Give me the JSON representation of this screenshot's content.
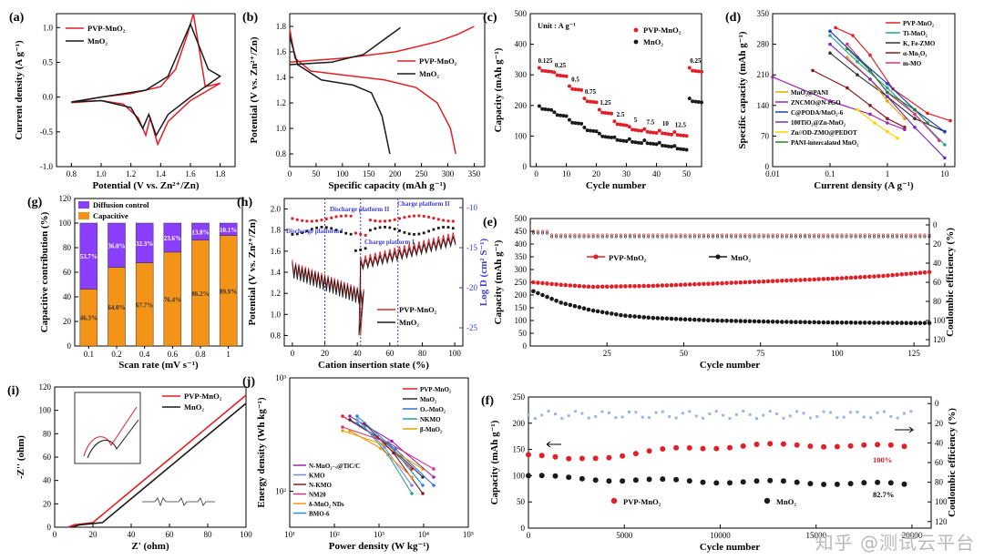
{
  "colors": {
    "red": "#e21f26",
    "black": "#1a1a1a",
    "purple": "#8a3ffc",
    "orange": "#f39419",
    "blue": "#3b3bd6",
    "grey": "#8c8c8c"
  },
  "watermark": "知乎 @测试云平台",
  "chart_data": [
    {
      "id": "a",
      "label": "(a)",
      "type": "line",
      "xlabel": "Potential (V vs. Zn²⁺/Zn)",
      "ylabel": "Current density (A g⁻¹)",
      "xlim": [
        0.7,
        1.9
      ],
      "ylim": [
        -1.0,
        1.2
      ],
      "xticks": [
        "0.8",
        "1.0",
        "1.2",
        "1.4",
        "1.6",
        "1.8"
      ],
      "yticks": [
        "-1.0",
        "-0.5",
        "0.0",
        "0.5",
        "1.0"
      ],
      "series": [
        {
          "name": "PVP-MnO₂",
          "color": "red"
        },
        {
          "name": "MnO₂",
          "color": "black"
        }
      ]
    },
    {
      "id": "b",
      "label": "(b)",
      "type": "line",
      "xlabel": "Specific capacity (mAh g⁻¹)",
      "ylabel": "Potential (V vs. Zn²⁺/Zn)",
      "xlim": [
        0,
        370
      ],
      "ylim": [
        0.7,
        1.9
      ],
      "xticks": [
        "0",
        "50",
        "100",
        "150",
        "200",
        "250",
        "300",
        "350"
      ],
      "yticks": [
        "0.8",
        "1.0",
        "1.2",
        "1.4",
        "1.6",
        "1.8"
      ],
      "series": [
        {
          "name": "PVP-MnO₂",
          "color": "red"
        },
        {
          "name": "MnO₂",
          "color": "black"
        }
      ]
    },
    {
      "id": "c",
      "label": "(c)",
      "type": "scatter",
      "unit": "Unit : A g⁻¹",
      "xlabel": "Cycle number",
      "ylabel": "Capacity (mAh g⁻¹)",
      "xlim": [
        -2,
        55
      ],
      "ylim": [
        0,
        500
      ],
      "xticks": [
        "0",
        "10",
        "20",
        "30",
        "40",
        "50"
      ],
      "yticks": [
        "0",
        "100",
        "200",
        "300",
        "400",
        "500"
      ],
      "rate_labels": [
        "0.125",
        "0.25",
        "0.5",
        "0.75",
        "1.25",
        "2.5",
        "5",
        "7.5",
        "10",
        "12.5",
        "0.25"
      ],
      "series": [
        {
          "name": "PVP-MnO₂",
          "color": "red",
          "steps": [
            315,
            300,
            255,
            215,
            178,
            140,
            122,
            115,
            110,
            105,
            315
          ]
        },
        {
          "name": "MnO₂",
          "color": "black",
          "steps": [
            190,
            170,
            145,
            120,
            100,
            88,
            82,
            78,
            70,
            60,
            215
          ]
        }
      ]
    },
    {
      "id": "d",
      "label": "(d)",
      "type": "line",
      "xlabel": "Current density (A g⁻¹)",
      "ylabel": "Specific capacity (mAh g⁻¹)",
      "xscale": "log",
      "xlim": [
        0.01,
        15
      ],
      "ylim": [
        0,
        350
      ],
      "xticks": [
        "0.01",
        "0.1",
        "1",
        "10"
      ],
      "yticks": [
        "0",
        "70",
        "140",
        "210",
        "280",
        "350"
      ],
      "series": [
        {
          "name": "PVP-MnO₂",
          "color": "#e21f26",
          "x": [
            0.125,
            0.25,
            0.5,
            1.25,
            5,
            12.5
          ],
          "y": [
            318,
            300,
            255,
            178,
            122,
            105
          ]
        },
        {
          "name": "Ti-MnO₂",
          "color": "#2aa198",
          "x": [
            0.1,
            0.3,
            1,
            3,
            10
          ],
          "y": [
            300,
            240,
            180,
            120,
            50
          ]
        },
        {
          "name": "K, Fe-ZMO",
          "color": "#333333",
          "x": [
            0.1,
            0.3,
            1,
            3,
            10
          ],
          "y": [
            260,
            210,
            160,
            110,
            80
          ]
        },
        {
          "name": "α-Mn₂O₃",
          "color": "#8b1a1a",
          "x": [
            0.05,
            0.2,
            0.5,
            1,
            2
          ],
          "y": [
            220,
            180,
            140,
            110,
            90
          ]
        },
        {
          "name": "m-MO",
          "color": "#d63384",
          "x": [
            0.2,
            0.5,
            1,
            3,
            8
          ],
          "y": [
            280,
            220,
            170,
            120,
            60
          ]
        },
        {
          "name": "MnO₂@PANI",
          "color": "#e0a800",
          "x": [
            0.2,
            0.5,
            1,
            2
          ],
          "y": [
            250,
            200,
            150,
            110
          ]
        },
        {
          "name": "ZNCMO@N-rGO",
          "color": "#9c27b0",
          "x": [
            0.01,
            0.1,
            0.5,
            1,
            2
          ],
          "y": [
            205,
            150,
            120,
            100,
            85
          ]
        },
        {
          "name": "C@PODA/MnO₂-6",
          "color": "#1f3fbf",
          "x": [
            0.1,
            0.3,
            1,
            3,
            10
          ],
          "y": [
            310,
            250,
            190,
            130,
            80
          ]
        },
        {
          "name": "100TiO₂@Zn-MnO₂",
          "color": "#7b2cbf",
          "x": [
            0.1,
            0.5,
            1,
            3,
            10
          ],
          "y": [
            280,
            200,
            160,
            90,
            20
          ]
        },
        {
          "name": "Zn//OD-ZMO@PEDOT",
          "color": "#ffd400",
          "x": [
            0.3,
            0.6,
            1,
            1.5
          ],
          "y": [
            130,
            100,
            80,
            65
          ]
        },
        {
          "name": "PANI-intercalated MnO₂",
          "color": "#2e7d32",
          "x": [
            0.2,
            0.5,
            1,
            3,
            5
          ],
          "y": [
            270,
            220,
            170,
            130,
            100
          ]
        }
      ]
    },
    {
      "id": "g",
      "label": "(g)",
      "type": "bar",
      "xlabel": "Scan rate (mV s⁻¹)",
      "ylabel": "Capacitive contribution (%)",
      "ylim": [
        0,
        120
      ],
      "yticks": [
        "0",
        "20",
        "40",
        "60",
        "80",
        "100",
        "120"
      ],
      "categories": [
        "0.1",
        "0.2",
        "0.4",
        "0.6",
        "0.8",
        "1"
      ],
      "series": [
        {
          "name": "Capacitive",
          "color": "orange",
          "values": [
            46.3,
            64.0,
            67.7,
            76.4,
            86.2,
            89.9
          ],
          "labels": [
            "46.3%",
            "64.0%",
            "67.7%",
            "76.4%",
            "86.2%",
            "89.9%"
          ]
        },
        {
          "name": "Diffusion control",
          "color": "purple",
          "values": [
            53.7,
            36.0,
            32.3,
            23.6,
            13.8,
            10.1
          ],
          "labels": [
            "53.7%",
            "36.0%",
            "32.3%",
            "23.6%",
            "13.8%",
            "10.1%"
          ]
        }
      ]
    },
    {
      "id": "h",
      "label": "(h)",
      "type": "line",
      "xlabel": "Cation insertion state (%)",
      "ylabel": "Potential (V vs. Zn²⁺/Zn)",
      "y2label": "Log D (cm² S⁻¹)",
      "xlim": [
        -5,
        105
      ],
      "ylim": [
        0.7,
        2.1
      ],
      "xticks": [
        "0",
        "20",
        "40",
        "60",
        "80",
        "100"
      ],
      "yticks": [
        "0.8",
        "1.0",
        "1.2",
        "1.4",
        "1.6",
        "1.8",
        "2.0"
      ],
      "y2ticks": [
        "-10",
        "-15",
        "-20",
        "-25"
      ],
      "annotations": [
        "Discharge platform I",
        "Discharge platform II",
        "Charge platform I",
        "Charge platform II"
      ],
      "series": [
        {
          "name": "PVP-MnO₂",
          "color": "red"
        },
        {
          "name": "MnO₂",
          "color": "black"
        }
      ]
    },
    {
      "id": "e",
      "label": "(e)",
      "type": "scatter",
      "xlabel": "Cycle number",
      "ylabel": "Capacity (mAh g⁻¹)",
      "y2label": "Coulombic efficiency (%)",
      "xlim": [
        0,
        130
      ],
      "ylim": [
        0,
        500
      ],
      "xticks": [
        "25",
        "50",
        "75",
        "100",
        "125"
      ],
      "yticks": [
        "0",
        "50",
        "100",
        "150",
        "200",
        "250",
        "300",
        "350",
        "400",
        "450",
        "500"
      ],
      "y2ticks": [
        "0",
        "20",
        "40",
        "60",
        "80",
        "100",
        "120"
      ],
      "series": [
        {
          "name": "PVP-MnO₂",
          "color": "red",
          "x": [
            1,
            10,
            20,
            40,
            60,
            80,
            100,
            115,
            130
          ],
          "y": [
            250,
            240,
            232,
            236,
            245,
            255,
            265,
            275,
            290
          ]
        },
        {
          "name": "MnO₂",
          "color": "black",
          "x": [
            1,
            10,
            20,
            30,
            40,
            60,
            80,
            100,
            130
          ],
          "y": [
            215,
            170,
            140,
            120,
            110,
            100,
            95,
            92,
            90
          ]
        }
      ]
    },
    {
      "id": "i",
      "label": "(i)",
      "type": "line",
      "xlabel": "Z' (ohm)",
      "ylabel": "-Z'' (ohm)",
      "xlim": [
        0,
        100
      ],
      "ylim": [
        0,
        120
      ],
      "xticks": [
        "0",
        "20",
        "40",
        "60",
        "80",
        "100"
      ],
      "yticks": [
        "0",
        "20",
        "40",
        "60",
        "80",
        "100",
        "120"
      ],
      "series": [
        {
          "name": "PVP-MnO₂",
          "color": "red",
          "x": [
            7,
            10,
            20,
            100
          ],
          "y": [
            0,
            2,
            4,
            113
          ]
        },
        {
          "name": "MnO₂",
          "color": "black",
          "x": [
            9,
            13,
            25,
            100
          ],
          "y": [
            0,
            2,
            4,
            106
          ]
        }
      ]
    },
    {
      "id": "j",
      "label": "(j)",
      "type": "line",
      "xlabel": "Power density (W kg⁻¹)",
      "ylabel": "Energy density (Wh kg⁻¹)",
      "xscale": "log",
      "yscale": "log",
      "xticks": [
        "10¹",
        "10²",
        "10³",
        "10⁴",
        "10⁵"
      ],
      "yticks": [
        "10²",
        "10³"
      ],
      "series": [
        {
          "name": "PVP-MnO₂",
          "color": "#e21f26"
        },
        {
          "name": "MnO₂",
          "color": "#333333"
        },
        {
          "name": "Oᵥ-MnO₂",
          "color": "#3b6ed6"
        },
        {
          "name": "NKMO",
          "color": "#2aa198"
        },
        {
          "name": "β-MnO₂",
          "color": "#e0a800"
        },
        {
          "name": "N-MnO₂₋ₓ@TiC/C",
          "color": "#9c27b0"
        },
        {
          "name": "KMO",
          "color": "#7b8cde"
        },
        {
          "name": "N-KMO",
          "color": "#8b1a1a"
        },
        {
          "name": "NM20",
          "color": "#d63384"
        },
        {
          "name": "δ-MnO₂ NDs",
          "color": "#f39419"
        },
        {
          "name": "BMO-6",
          "color": "#1f8fd6"
        }
      ]
    },
    {
      "id": "f",
      "label": "(f)",
      "type": "scatter",
      "xlabel": "Cycle number",
      "ylabel": "Capacity (mAh g⁻¹)",
      "y2label": "Coulombic efficiency (%)",
      "xlim": [
        0,
        21000
      ],
      "ylim": [
        0,
        250
      ],
      "xticks": [
        "0",
        "5000",
        "10000",
        "15000",
        "20000"
      ],
      "yticks": [
        "0",
        "50",
        "100",
        "150",
        "200",
        "250"
      ],
      "y2ticks": [
        "0",
        "20",
        "40",
        "60",
        "80",
        "100",
        "120"
      ],
      "retention_labels": [
        "100%",
        "82.7%"
      ],
      "series": [
        {
          "name": "PVP-MnO₂",
          "color": "red",
          "x": [
            0,
            2000,
            5000,
            8000,
            12000,
            16000,
            20000
          ],
          "y": [
            140,
            130,
            140,
            152,
            158,
            158,
            155
          ]
        },
        {
          "name": "MnO₂",
          "color": "black",
          "x": [
            0,
            2000,
            5000,
            8000,
            12000,
            16000,
            20000
          ],
          "y": [
            100,
            95,
            92,
            90,
            88,
            86,
            83
          ]
        }
      ]
    }
  ]
}
